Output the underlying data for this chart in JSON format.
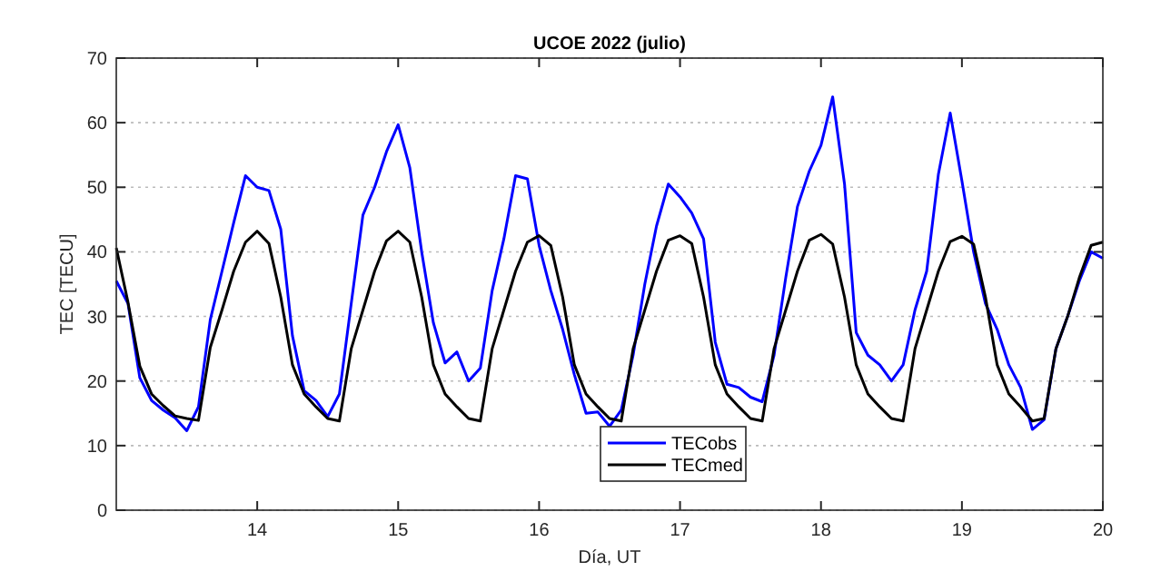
{
  "chart_data": {
    "type": "line",
    "title": "UCOE 2022 (julio)",
    "xlabel": "Día, UT",
    "ylabel": "TEC [TECU]",
    "x": [
      13,
      13.083,
      13.167,
      13.25,
      13.333,
      13.417,
      13.5,
      13.583,
      13.667,
      13.75,
      13.833,
      13.917,
      14,
      14.083,
      14.167,
      14.25,
      14.333,
      14.417,
      14.5,
      14.583,
      14.667,
      14.75,
      14.833,
      14.917,
      15,
      15.083,
      15.167,
      15.25,
      15.333,
      15.417,
      15.5,
      15.583,
      15.667,
      15.75,
      15.833,
      15.917,
      16,
      16.083,
      16.167,
      16.25,
      16.333,
      16.417,
      16.5,
      16.583,
      16.667,
      16.75,
      16.833,
      16.917,
      17,
      17.083,
      17.167,
      17.25,
      17.333,
      17.417,
      17.5,
      17.583,
      17.667,
      17.75,
      17.833,
      17.917,
      18,
      18.083,
      18.167,
      18.25,
      18.333,
      18.417,
      18.5,
      18.583,
      18.667,
      18.75,
      18.833,
      18.917,
      19,
      19.083,
      19.167,
      19.25,
      19.333,
      19.417,
      19.5,
      19.583,
      19.667,
      19.75,
      19.833,
      19.917,
      20
    ],
    "series": [
      {
        "name": "TECobs",
        "color": "#0000ff",
        "values": [
          35.5,
          32,
          20.5,
          17,
          15.5,
          14.3,
          12.3,
          16,
          29.5,
          37,
          44.5,
          51.8,
          50,
          49.5,
          43.5,
          27,
          18.5,
          17,
          14.5,
          18,
          32,
          45.7,
          50,
          55.5,
          59.7,
          53,
          40,
          29,
          22.8,
          24.5,
          20,
          22,
          34,
          42,
          51.8,
          51.3,
          41,
          34,
          28,
          21,
          15,
          15.2,
          13,
          15.5,
          24,
          35,
          44,
          50.5,
          48.5,
          46,
          42,
          26,
          19.5,
          19,
          17.5,
          16.8,
          24,
          36,
          47,
          52.5,
          56.5,
          64,
          50.5,
          27.5,
          24,
          22.5,
          20,
          22.5,
          31,
          37,
          52,
          61.5,
          51,
          40,
          32,
          28,
          22.5,
          19,
          12.5,
          14,
          25,
          30,
          35.5,
          40,
          39
        ]
      },
      {
        "name": "TECmed",
        "color": "#000000",
        "values": [
          40.6,
          32.2,
          22.3,
          18,
          16.2,
          14.6,
          14.2,
          13.9,
          25.2,
          31,
          37,
          41.5,
          43.2,
          41.3,
          33,
          22.5,
          18,
          16,
          14.2,
          13.8,
          25,
          31,
          37,
          41.7,
          43.2,
          41.5,
          33,
          22.5,
          18,
          16,
          14.2,
          13.8,
          25,
          31,
          37,
          41.5,
          42.5,
          41,
          33,
          22.5,
          18,
          16,
          14.2,
          13.8,
          25,
          31,
          37,
          41.8,
          42.5,
          41.3,
          33,
          22.5,
          18,
          16,
          14.2,
          13.8,
          25,
          31,
          37,
          41.8,
          42.7,
          41.2,
          33,
          22.5,
          18,
          16,
          14.2,
          13.8,
          25,
          31,
          37,
          41.6,
          42.4,
          41.2,
          33,
          22.5,
          18,
          16,
          13.8,
          14.2,
          25,
          30,
          36,
          41,
          41.5
        ]
      }
    ],
    "xlim": [
      13,
      20
    ],
    "xticks": [
      14,
      15,
      16,
      17,
      18,
      19,
      20
    ],
    "ylim": [
      0,
      70
    ],
    "yticks": [
      0,
      10,
      20,
      30,
      40,
      50,
      60,
      70
    ],
    "grid": "y",
    "legend": "bottom",
    "marker": "none",
    "line_style": "solid"
  }
}
